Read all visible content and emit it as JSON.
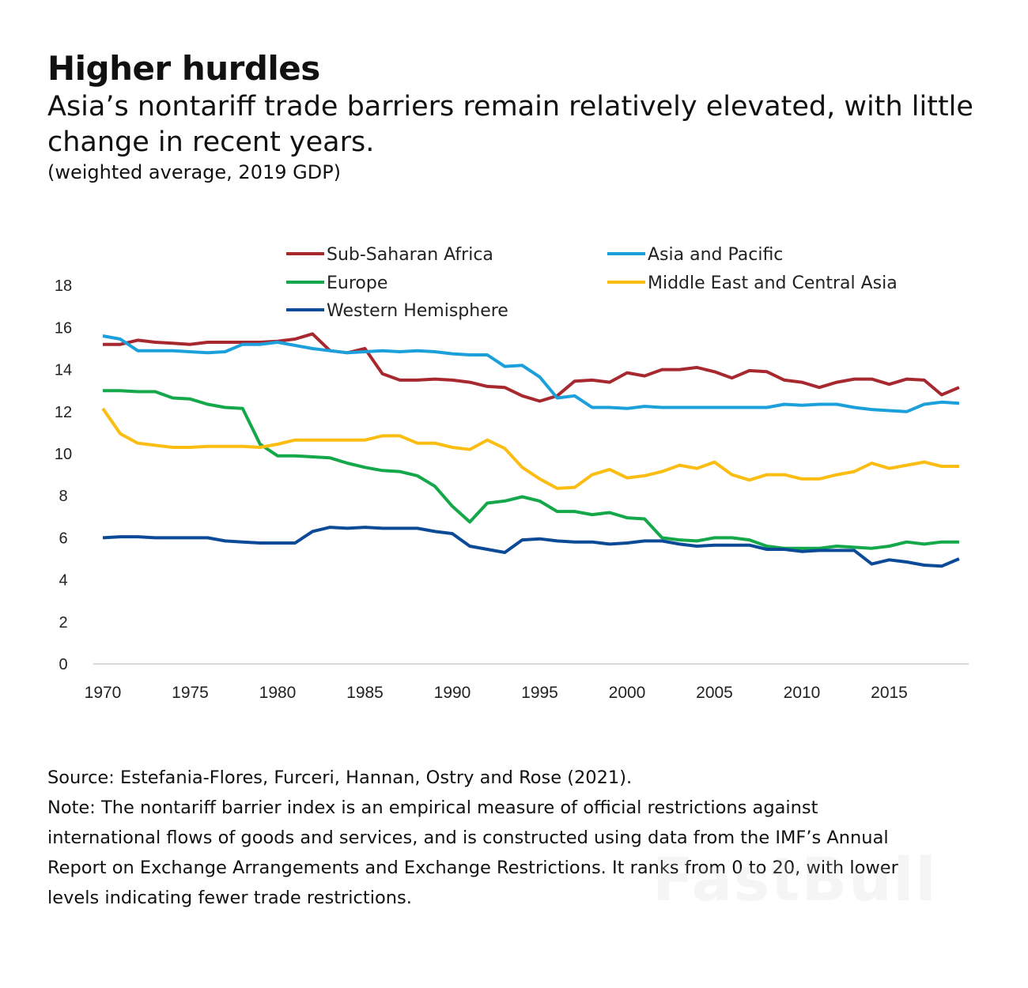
{
  "header": {
    "title": "Higher hurdles",
    "subtitle": "Asia’s nontariff trade barriers remain relatively elevated, with little change in recent years.",
    "unit_note": "(weighted average, 2019 GDP)"
  },
  "footer": {
    "source": "Source: Estefania-Flores, Furceri, Hannan, Ostry and Rose (2021).",
    "note_lines": [
      "Note: The nontariff barrier index is an empirical measure of official restrictions against",
      "international flows of goods and services, and is constructed using data from the IMF’s Annual",
      "Report on Exchange Arrangements and Exchange Restrictions. It ranks from 0 to 20, with lower",
      "levels indicating fewer trade restrictions."
    ]
  },
  "watermark": "FastBull",
  "chart_data": {
    "type": "line",
    "xlim": [
      1970,
      2019
    ],
    "ylim": [
      0,
      18
    ],
    "x_ticks": [
      1970,
      1975,
      1980,
      1985,
      1990,
      1995,
      2000,
      2005,
      2010,
      2015
    ],
    "y_ticks": [
      0,
      2,
      4,
      6,
      8,
      10,
      12,
      14,
      16,
      18
    ],
    "grid": false,
    "legend_position": "top",
    "x_start": 1970,
    "series": [
      {
        "name": "Sub-Saharan Africa",
        "color": "#a8282f",
        "values": [
          15.2,
          15.2,
          15.4,
          15.3,
          15.25,
          15.2,
          15.3,
          15.3,
          15.3,
          15.3,
          15.35,
          15.45,
          15.7,
          14.9,
          14.8,
          15.0,
          13.8,
          13.5,
          13.5,
          13.55,
          13.5,
          13.4,
          13.2,
          13.15,
          12.75,
          12.5,
          12.75,
          13.45,
          13.5,
          13.4,
          13.85,
          13.7,
          14.0,
          14.0,
          14.1,
          13.9,
          13.6,
          13.95,
          13.9,
          13.5,
          13.4,
          13.15,
          13.4,
          13.55,
          13.55,
          13.3,
          13.55,
          13.5,
          12.8,
          13.15
        ]
      },
      {
        "name": "Asia and Pacific",
        "color": "#1ba0db",
        "values": [
          15.6,
          15.45,
          14.9,
          14.9,
          14.9,
          14.85,
          14.8,
          14.85,
          15.2,
          15.2,
          15.3,
          15.15,
          15.0,
          14.9,
          14.8,
          14.85,
          14.9,
          14.85,
          14.9,
          14.85,
          14.75,
          14.7,
          14.7,
          14.15,
          14.2,
          13.65,
          12.65,
          12.75,
          12.2,
          12.2,
          12.15,
          12.25,
          12.2,
          12.2,
          12.2,
          12.2,
          12.2,
          12.2,
          12.2,
          12.35,
          12.3,
          12.35,
          12.35,
          12.2,
          12.1,
          12.05,
          12.0,
          12.35,
          12.45,
          12.4
        ]
      },
      {
        "name": "Europe",
        "color": "#14a84a",
        "values": [
          13.0,
          13.0,
          12.95,
          12.95,
          12.65,
          12.6,
          12.35,
          12.2,
          12.15,
          10.45,
          9.9,
          9.9,
          9.85,
          9.8,
          9.55,
          9.35,
          9.2,
          9.15,
          8.95,
          8.45,
          7.5,
          6.75,
          7.65,
          7.75,
          7.95,
          7.75,
          7.25,
          7.25,
          7.1,
          7.2,
          6.95,
          6.9,
          6.0,
          5.9,
          5.85,
          6.0,
          6.0,
          5.9,
          5.6,
          5.5,
          5.5,
          5.5,
          5.6,
          5.55,
          5.5,
          5.6,
          5.8,
          5.7,
          5.8,
          5.8
        ]
      },
      {
        "name": "Middle East and Central Asia",
        "color": "#fbbd12",
        "values": [
          12.15,
          10.95,
          10.5,
          10.4,
          10.3,
          10.3,
          10.35,
          10.35,
          10.35,
          10.3,
          10.45,
          10.65,
          10.65,
          10.65,
          10.65,
          10.65,
          10.85,
          10.85,
          10.5,
          10.5,
          10.3,
          10.2,
          10.65,
          10.25,
          9.35,
          8.8,
          8.35,
          8.4,
          9.0,
          9.25,
          8.85,
          8.95,
          9.15,
          9.45,
          9.3,
          9.6,
          9.0,
          8.75,
          9.0,
          9.0,
          8.8,
          8.8,
          9.0,
          9.15,
          9.55,
          9.3,
          9.45,
          9.6,
          9.4,
          9.4
        ]
      },
      {
        "name": "Western Hemisphere",
        "color": "#0b4a96",
        "values": [
          6.0,
          6.05,
          6.05,
          6.0,
          6.0,
          6.0,
          6.0,
          5.85,
          5.8,
          5.75,
          5.75,
          5.75,
          6.3,
          6.5,
          6.45,
          6.5,
          6.45,
          6.45,
          6.45,
          6.3,
          6.2,
          5.6,
          5.45,
          5.3,
          5.9,
          5.95,
          5.85,
          5.8,
          5.8,
          5.7,
          5.75,
          5.85,
          5.85,
          5.7,
          5.6,
          5.65,
          5.65,
          5.65,
          5.45,
          5.45,
          5.35,
          5.4,
          5.4,
          5.4,
          4.75,
          4.95,
          4.85,
          4.7,
          4.65,
          5.0
        ]
      }
    ]
  }
}
